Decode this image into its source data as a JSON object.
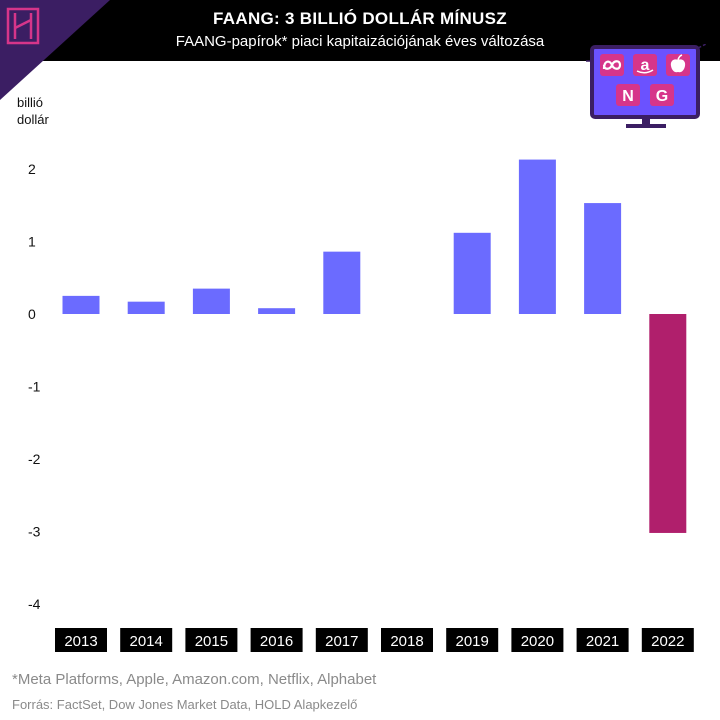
{
  "header": {
    "title": "FAANG: 3 BILLIÓ DOLLÁR MÍNUSZ",
    "subtitle": "FAANG-papírok* piaci kapitaizációjának éves változása",
    "logo_icon": "hold-logo-icon",
    "tv_icon": "tv-with-faang-logos-icon",
    "tv_letters": [
      "N",
      "G"
    ]
  },
  "colors": {
    "positive": "#6b6bff",
    "negative": "#b01f6c",
    "header_bg": "#000000",
    "logo_purple": "#3b1e63",
    "logo_pink": "#d6358a",
    "tv_screen": "#6b52ff",
    "tv_frame": "#3b1e63",
    "tv_tile": "#d6358a"
  },
  "chart_data": {
    "type": "bar",
    "categories": [
      "2013",
      "2014",
      "2015",
      "2016",
      "2017",
      "2018",
      "2019",
      "2020",
      "2021",
      "2022"
    ],
    "values": [
      0.25,
      0.17,
      0.35,
      0.08,
      0.86,
      0,
      1.12,
      2.13,
      1.53,
      -3.02
    ],
    "ylabel": "billió dollár",
    "ylabel_lines": [
      "billió",
      "dollár"
    ],
    "ylim": [
      -4,
      2.4
    ],
    "yticks": [
      2,
      1,
      0,
      -1,
      -2,
      -3,
      -4
    ],
    "grid": false,
    "legend": "none"
  },
  "footer": {
    "footnote": "*Meta Platforms, Apple, Amazon.com, Netflix, Alphabet",
    "source": "Forrás: FactSet, Dow Jones Market Data, HOLD Alapkezelő"
  }
}
